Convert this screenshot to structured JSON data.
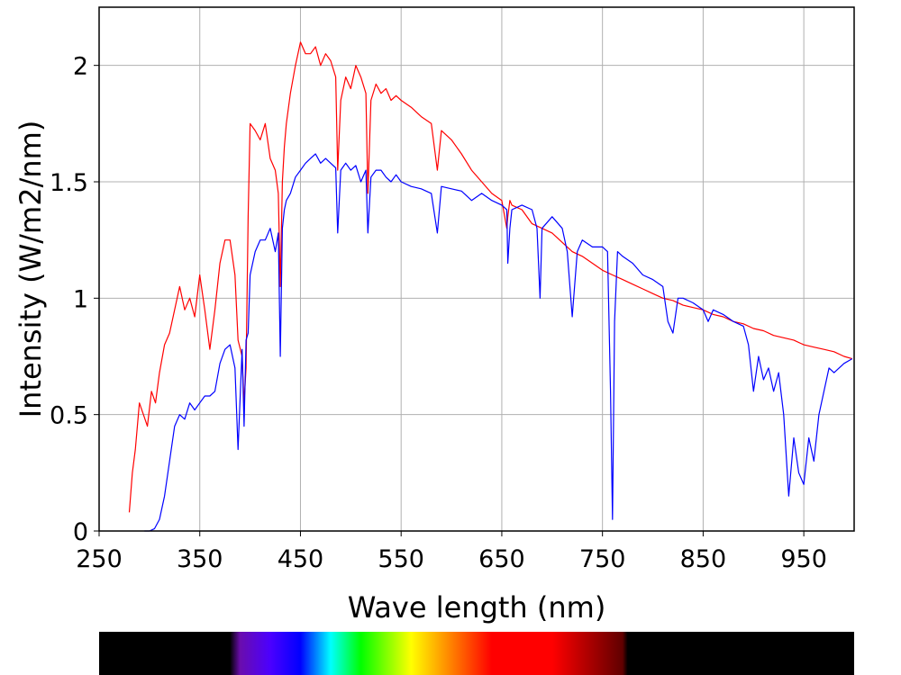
{
  "chart_data": {
    "type": "line",
    "title": "",
    "xlabel": "Wave length (nm)",
    "ylabel": "Intensity (W/m2/nm)",
    "xlim": [
      250,
      1000
    ],
    "ylim": [
      0,
      2.25
    ],
    "x_ticks": [
      250,
      350,
      450,
      550,
      650,
      750,
      850,
      950
    ],
    "x_tick_labels": [
      "250",
      "350",
      "450",
      "550",
      "650",
      "750",
      "850",
      "950"
    ],
    "y_ticks": [
      0,
      0.5,
      1,
      1.5,
      2
    ],
    "y_tick_labels": [
      "0",
      "0.5",
      "1",
      "1.5",
      "2"
    ],
    "grid": true,
    "legend": "none",
    "series": [
      {
        "color": "#ff0000",
        "x": [
          280,
          283,
          286,
          290,
          294,
          298,
          302,
          306,
          310,
          315,
          320,
          325,
          330,
          335,
          340,
          345,
          350,
          355,
          360,
          365,
          370,
          375,
          380,
          385,
          388,
          392,
          394,
          396,
          398,
          400,
          405,
          410,
          415,
          420,
          425,
          428,
          430,
          432,
          434,
          436,
          440,
          445,
          450,
          455,
          460,
          465,
          470,
          475,
          480,
          485,
          487,
          490,
          495,
          500,
          505,
          510,
          515,
          517,
          520,
          525,
          530,
          535,
          540,
          545,
          550,
          560,
          570,
          580,
          586,
          590,
          600,
          610,
          620,
          630,
          640,
          650,
          655,
          656,
          658,
          660,
          670,
          680,
          690,
          700,
          710,
          720,
          730,
          740,
          750,
          760,
          770,
          780,
          790,
          800,
          810,
          820,
          830,
          840,
          850,
          860,
          870,
          880,
          890,
          900,
          910,
          920,
          930,
          940,
          950,
          960,
          970,
          980,
          990,
          998
        ],
        "y": [
          0.08,
          0.25,
          0.35,
          0.55,
          0.5,
          0.45,
          0.6,
          0.55,
          0.68,
          0.8,
          0.85,
          0.95,
          1.05,
          0.95,
          1.0,
          0.92,
          1.1,
          0.95,
          0.78,
          0.95,
          1.15,
          1.25,
          1.25,
          1.1,
          0.82,
          0.75,
          0.55,
          0.7,
          1.35,
          1.75,
          1.72,
          1.68,
          1.75,
          1.6,
          1.55,
          1.45,
          1.05,
          1.5,
          1.65,
          1.75,
          1.88,
          2.0,
          2.1,
          2.05,
          2.05,
          2.08,
          2.0,
          2.05,
          2.02,
          1.95,
          1.55,
          1.85,
          1.95,
          1.9,
          2.0,
          1.95,
          1.88,
          1.45,
          1.85,
          1.92,
          1.88,
          1.9,
          1.85,
          1.87,
          1.85,
          1.82,
          1.78,
          1.75,
          1.55,
          1.72,
          1.68,
          1.62,
          1.55,
          1.5,
          1.45,
          1.42,
          1.3,
          1.35,
          1.42,
          1.4,
          1.38,
          1.32,
          1.3,
          1.28,
          1.24,
          1.2,
          1.18,
          1.15,
          1.12,
          1.1,
          1.08,
          1.06,
          1.04,
          1.02,
          1.0,
          0.99,
          0.97,
          0.96,
          0.95,
          0.93,
          0.92,
          0.9,
          0.89,
          0.87,
          0.86,
          0.84,
          0.83,
          0.82,
          0.8,
          0.79,
          0.78,
          0.77,
          0.75,
          0.74
        ]
      },
      {
        "color": "#0000ff",
        "x": [
          295,
          300,
          305,
          310,
          315,
          320,
          325,
          330,
          335,
          340,
          345,
          350,
          355,
          360,
          365,
          370,
          375,
          380,
          385,
          388,
          392,
          394,
          396,
          398,
          400,
          405,
          410,
          415,
          420,
          425,
          428,
          430,
          432,
          434,
          436,
          440,
          445,
          450,
          455,
          460,
          465,
          470,
          475,
          480,
          485,
          487,
          490,
          495,
          500,
          505,
          510,
          515,
          517,
          520,
          525,
          530,
          535,
          540,
          545,
          550,
          560,
          570,
          580,
          586,
          590,
          600,
          610,
          620,
          630,
          640,
          650,
          655,
          656,
          658,
          660,
          670,
          680,
          685,
          688,
          690,
          700,
          710,
          715,
          720,
          725,
          730,
          740,
          750,
          755,
          758,
          760,
          762,
          765,
          770,
          780,
          790,
          800,
          810,
          815,
          820,
          825,
          830,
          840,
          850,
          855,
          860,
          870,
          880,
          890,
          895,
          900,
          905,
          910,
          915,
          920,
          925,
          930,
          935,
          940,
          945,
          950,
          955,
          960,
          965,
          970,
          975,
          980,
          990,
          998
        ],
        "y": [
          0,
          0,
          0.01,
          0.05,
          0.15,
          0.3,
          0.45,
          0.5,
          0.48,
          0.55,
          0.52,
          0.55,
          0.58,
          0.58,
          0.6,
          0.72,
          0.78,
          0.8,
          0.7,
          0.35,
          0.78,
          0.45,
          0.82,
          0.85,
          1.1,
          1.2,
          1.25,
          1.25,
          1.3,
          1.2,
          1.28,
          0.75,
          1.3,
          1.38,
          1.42,
          1.45,
          1.52,
          1.55,
          1.58,
          1.6,
          1.62,
          1.58,
          1.6,
          1.58,
          1.56,
          1.28,
          1.55,
          1.58,
          1.55,
          1.57,
          1.5,
          1.55,
          1.28,
          1.52,
          1.55,
          1.55,
          1.52,
          1.5,
          1.53,
          1.5,
          1.48,
          1.47,
          1.45,
          1.28,
          1.48,
          1.47,
          1.46,
          1.42,
          1.45,
          1.42,
          1.4,
          1.38,
          1.15,
          1.3,
          1.38,
          1.4,
          1.38,
          1.3,
          1.0,
          1.3,
          1.35,
          1.3,
          1.2,
          0.92,
          1.2,
          1.25,
          1.22,
          1.22,
          1.2,
          0.6,
          0.05,
          0.9,
          1.2,
          1.18,
          1.15,
          1.1,
          1.08,
          1.05,
          0.9,
          0.85,
          1.0,
          1.0,
          0.98,
          0.95,
          0.9,
          0.95,
          0.93,
          0.9,
          0.88,
          0.8,
          0.6,
          0.75,
          0.65,
          0.7,
          0.6,
          0.68,
          0.5,
          0.15,
          0.4,
          0.25,
          0.2,
          0.4,
          0.3,
          0.5,
          0.6,
          0.7,
          0.68,
          0.72,
          0.74
        ]
      }
    ]
  },
  "spectrum_bar": {
    "stops": [
      {
        "nm": 250,
        "color": "#000000"
      },
      {
        "nm": 380,
        "color": "#000000"
      },
      {
        "nm": 390,
        "color": "#6a0dad"
      },
      {
        "nm": 420,
        "color": "#4b00ff"
      },
      {
        "nm": 450,
        "color": "#0000ff"
      },
      {
        "nm": 480,
        "color": "#00ffff"
      },
      {
        "nm": 510,
        "color": "#00ff00"
      },
      {
        "nm": 560,
        "color": "#ffff00"
      },
      {
        "nm": 600,
        "color": "#ff8000"
      },
      {
        "nm": 640,
        "color": "#ff0000"
      },
      {
        "nm": 700,
        "color": "#ff0000"
      },
      {
        "nm": 770,
        "color": "#600000"
      },
      {
        "nm": 775,
        "color": "#000000"
      },
      {
        "nm": 1000,
        "color": "#000000"
      }
    ]
  }
}
